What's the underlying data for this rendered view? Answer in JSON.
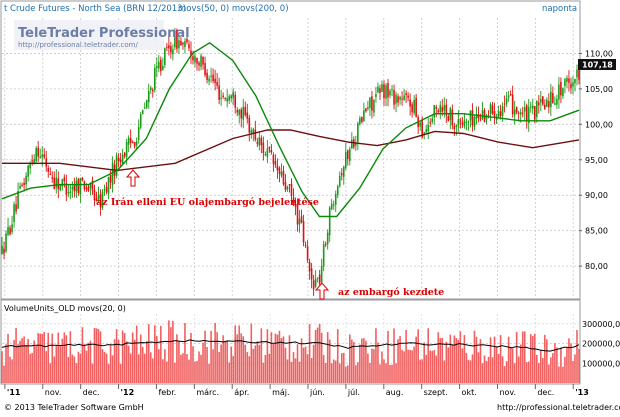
{
  "header": {
    "title": "t Crude Futures - North Sea (BRN 12/2013)",
    "indicator": "movs(50, 0)  movs(200, 0)",
    "period": "naponta"
  },
  "watermark": {
    "brand": "TeleTrader Professional",
    "url": "http://professional.teletrader.com/"
  },
  "last_price": "107,18",
  "annotations": {
    "iran_embargo_announcement": "az Irán elleni EU olajembargó bejelentése",
    "embargo_start": "az embargó kezdete"
  },
  "volume_panel": {
    "title": "VolumeUnits_OLD movs(20, 0)"
  },
  "footer": {
    "copyright": "© 2013 TeleTrader Software GmbH",
    "url": "http://professional.teletrader.com"
  },
  "colors": {
    "up_candle": "#1a9a1a",
    "down_candle": "#dd1111",
    "ma50": "#0a8a0a",
    "ma200": "#6e0f0f",
    "volume_bar": "#f06060",
    "volume_ma": "#000000",
    "last_price_box": "#111111",
    "annotation": "#d80000",
    "header_text": "#1f6fb0"
  },
  "chart_data": {
    "type": "candlestick",
    "x_axis_labels": [
      "'11",
      "nov.",
      "dec.",
      "'12",
      "febr.",
      "márc.",
      "ápr.",
      "máj.",
      "jún.",
      "júl.",
      "aug.",
      "szept.",
      "okt.",
      "nov.",
      "dec.",
      "'13"
    ],
    "price_axis": {
      "ticks": [
        80,
        85,
        90,
        95,
        100,
        105,
        110
      ],
      "tick_labels": [
        "80,00",
        "85,00",
        "90,00",
        "95,00",
        "100,00",
        "105,00",
        "110,00"
      ],
      "ylim": [
        75.5,
        115
      ]
    },
    "volume_axis": {
      "ticks": [
        100000,
        200000,
        300000
      ],
      "tick_labels": [
        "100000,00",
        "200000,00",
        "300000,00"
      ],
      "ylim": [
        0,
        350000
      ]
    },
    "price_path": {
      "x": [
        0,
        0.03,
        0.06,
        0.09,
        0.12,
        0.14,
        0.17,
        0.2,
        0.23,
        0.25,
        0.27,
        0.3,
        0.33,
        0.36,
        0.38,
        0.4,
        0.42,
        0.44,
        0.46,
        0.48,
        0.5,
        0.52,
        0.535,
        0.55,
        0.565,
        0.58,
        0.6,
        0.63,
        0.66,
        0.68,
        0.71,
        0.73,
        0.76,
        0.79,
        0.82,
        0.85,
        0.88,
        0.91,
        0.94,
        0.97,
        1.0
      ],
      "y": [
        82,
        90,
        97,
        92,
        91,
        92,
        89,
        95,
        98,
        103,
        108,
        112,
        110,
        107,
        104,
        104,
        101,
        98,
        96,
        93,
        90,
        85,
        78,
        78,
        86,
        92,
        96,
        102,
        105,
        104,
        103,
        99,
        103,
        100,
        101,
        102,
        103,
        101,
        103,
        105,
        107.2
      ]
    },
    "series": [
      {
        "name": "movs(50, 0)",
        "x": [
          0,
          0.05,
          0.1,
          0.15,
          0.2,
          0.25,
          0.29,
          0.33,
          0.36,
          0.4,
          0.44,
          0.48,
          0.52,
          0.55,
          0.58,
          0.62,
          0.66,
          0.7,
          0.75,
          0.8,
          0.85,
          0.9,
          0.95,
          1.0
        ],
        "values": [
          89.5,
          91,
          91.5,
          91.5,
          93.5,
          98,
          105,
          110,
          111.5,
          109,
          104,
          97,
          90.5,
          87,
          87,
          91,
          96.5,
          99.5,
          101.5,
          101.5,
          101,
          100.5,
          100.5,
          102
        ]
      },
      {
        "name": "movs(200, 0)",
        "x": [
          0,
          0.1,
          0.2,
          0.3,
          0.4,
          0.46,
          0.5,
          0.55,
          0.6,
          0.65,
          0.7,
          0.75,
          0.8,
          0.86,
          0.92,
          1.0
        ],
        "values": [
          94.5,
          94.5,
          93.5,
          94.5,
          98,
          99.2,
          99.2,
          98.3,
          97.5,
          97,
          97.8,
          99,
          98.7,
          97.5,
          96.7,
          97.8
        ]
      }
    ],
    "volume_ma": {
      "x": [
        0,
        0.1,
        0.2,
        0.3,
        0.4,
        0.5,
        0.55,
        0.6,
        0.7,
        0.8,
        0.9,
        0.95,
        1.0
      ],
      "values": [
        185000,
        190000,
        195000,
        215000,
        210000,
        205000,
        200000,
        180000,
        200000,
        195000,
        180000,
        165000,
        190000
      ]
    },
    "grid": true
  }
}
